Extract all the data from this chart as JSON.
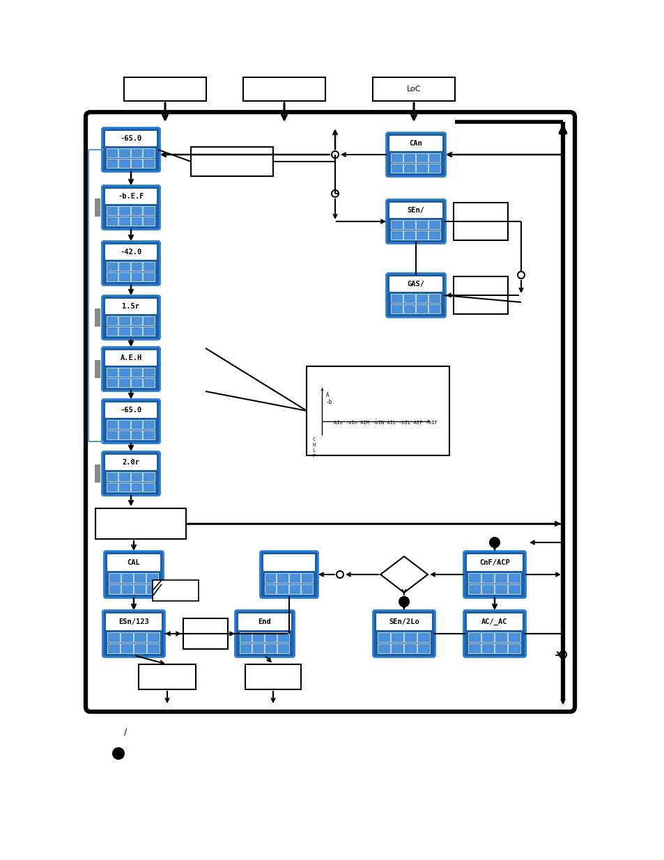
{
  "bg_color": "#ffffff",
  "blue_outer": "#2a7fd4",
  "blue_inner": "#1a5fa8",
  "blue_icon": "#4a90d9",
  "gray_marker": "#888888",
  "left_labels": [
    "-65.0",
    "-b.E.F",
    "-42.0",
    "1.5r",
    "A.E.H",
    "-65.0",
    "2.0r"
  ],
  "right_labels": [
    "CAn",
    "SEn/",
    "GAS/"
  ],
  "bottom_labels": [
    "CAL",
    "ESn/123",
    "End",
    "SEn/2Lo",
    "CnF/ACP",
    "AC/_AC"
  ],
  "top_labels": [
    "",
    "",
    "LoC"
  ],
  "graph_text": "AIn -bIn AIM -bIN AIL -bIL AIF -bIF",
  "figure_width": 9.54,
  "figure_height": 12.35,
  "dpi": 100
}
